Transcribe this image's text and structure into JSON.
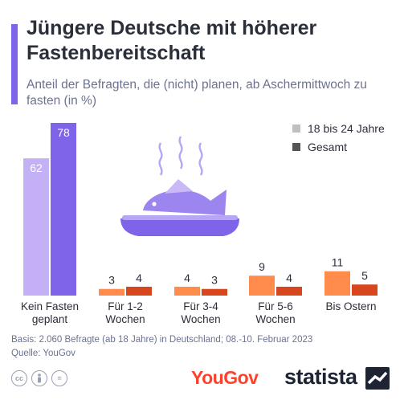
{
  "header": {
    "title": "Jüngere Deutsche mit höherer Fastenbereitschaft",
    "subtitle": "Anteil der Befragten, die (nicht) planen, ab Aschermittwoch zu fasten (in %)"
  },
  "chart_data": {
    "type": "bar",
    "title": "Jüngere Deutsche mit höherer Fastenbereitschaft",
    "subtitle": "Anteil der Befragten, die (nicht) planen, ab Aschermittwoch zu fasten (in %)",
    "categories": [
      "Kein Fasten geplant",
      "Für 1-2 Wochen",
      "Für 3-4 Wochen",
      "Für 5-6 Wochen",
      "Bis Ostern"
    ],
    "series": [
      {
        "name": "18 bis 24 Jahre",
        "values": [
          62,
          3,
          4,
          9,
          11
        ]
      },
      {
        "name": "Gesamt",
        "values": [
          78,
          4,
          3,
          4,
          5
        ]
      }
    ],
    "ylim": [
      0,
      78
    ],
    "grid": false,
    "legend_position": "top-right",
    "colors": {
      "kein_fasten": [
        "#c4b1f5",
        "#7f63e8"
      ],
      "fasten": [
        "#ff8c4d",
        "#d8461d"
      ]
    }
  },
  "category_labels": [
    [
      "Kein Fasten",
      "geplant"
    ],
    [
      "Für 1-2",
      "Wochen"
    ],
    [
      "Für 3-4",
      "Wochen"
    ],
    [
      "Für 5-6",
      "Wochen"
    ],
    [
      "Bis Ostern"
    ]
  ],
  "legend": {
    "items": [
      {
        "label": "18 bis 24 Jahre",
        "color": "#c0c0c0"
      },
      {
        "label": "Gesamt",
        "color": "#555555"
      }
    ]
  },
  "footer": {
    "basis": "Basis: 2.060 Befragte (ab 18 Jahre) in Deutschland; 08.-10. Februar 2023",
    "quelle": "Quelle: YouGov",
    "yougov_logo": "YouGov",
    "statista_logo": "statista",
    "cc_icons": [
      "cc",
      "by",
      "="
    ]
  },
  "illustration": {
    "icon": "fish-on-plate-icon"
  }
}
